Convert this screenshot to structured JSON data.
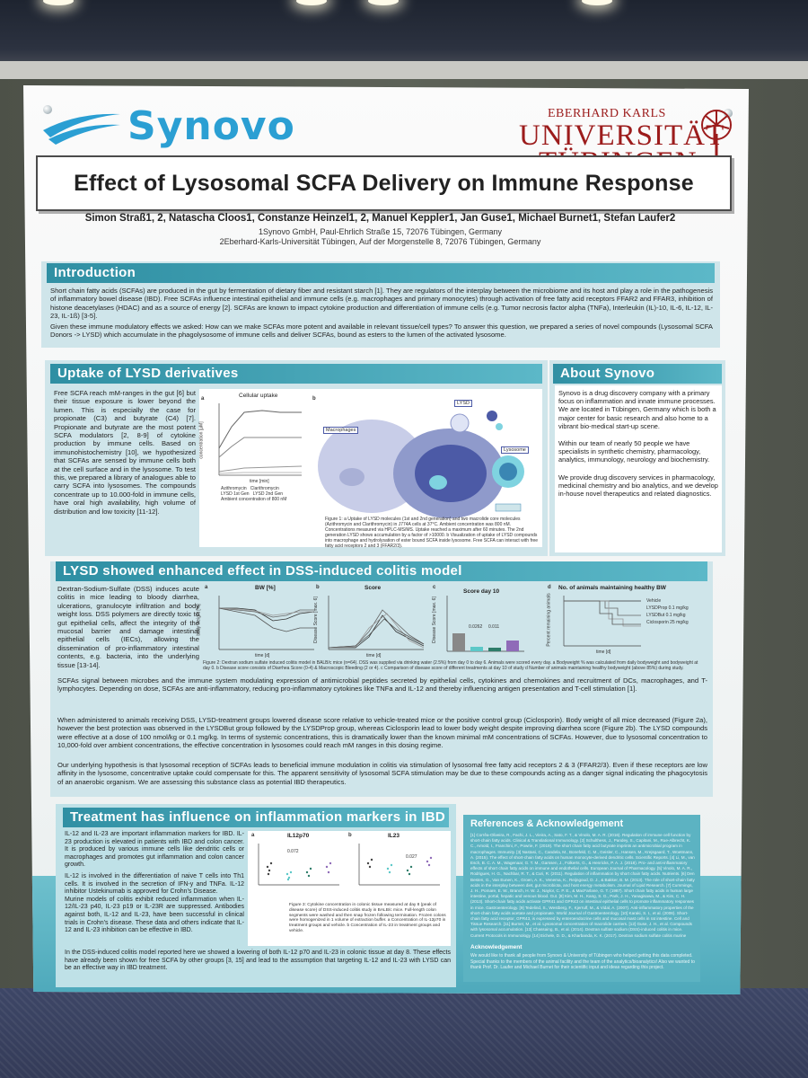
{
  "logo": {
    "synovo": "Synovo"
  },
  "university": {
    "line1": "EBERHARD KARLS",
    "line2": "UNIVERSITÄT",
    "line3": "TÜBINGEN"
  },
  "title": "Effect of Lysosomal SCFA Delivery on Immune Response",
  "authors": "Simon Straß1, 2, Natascha Cloos1, Constanze Heinzel1, 2, Manuel Keppler1, Jan Guse1, Michael Burnet1, Stefan Laufer2",
  "affiliations": [
    "1Synovo GmbH, Paul-Ehrlich Straße 15, 72076 Tübingen, Germany",
    "2Eberhard-Karls-Universität Tübingen, Auf der Morgenstelle 8, 72076 Tübingen, Germany"
  ],
  "introduction": {
    "heading": "Introduction",
    "p1": "Short chain fatty acids (SCFAs) are produced in the gut by fermentation of dietary fiber and resistant starch [1]. They are regulators of the interplay between the microbiome and its host and play a role in the pathogenesis of inflammatory bowel disease (IBD). Free SCFAs influence intestinal epithelial and immune cells (e.g. macrophages and primary monocytes) through activation of free fatty acid receptors FFAR2 and FFAR3, inhibition of histone deacetylases (HDAC) and as a source of energy [2]. SCFAs are known to impact cytokine production and differentiation of immune cells (e.g. Tumor necrosis factor alpha (TNFa), Interleukin (IL)-10, IL-6, IL-12, IL-23, IL-1ß) [3-5].",
    "p2": "Given these immune modulatory effects we asked: How can we make SCFAs more potent and available in relevant tissue/cell types? To answer this question, we prepared a series of novel compounds (Lysosomal SCFA Donors -> LYSD) which accumulate in the phagolysosome of immune cells and deliver SCFAs, bound as esters to the lumen of the activated lysosome."
  },
  "uptake": {
    "heading": "Uptake of LYSD derivatives",
    "text": "Free SCFA reach mM-ranges in the gut [6] but their tissue exposure is lower beyond the lumen. This is especially the case for propionate (C3) and butyrate (C4) [7]. Propionate and butyrate are the most potent SCFA modulators [2, 8-9] of cytokine production by immune cells. Based on immunohistochemistry [10], we hypothesized that SCFAs are sensed by immune cells both at the cell surface and in the lysosome. To test this, we prepared a library of analogues able to carry SCFA into lysosomes. The compounds concentrate up to 10.000-fold in immune cells, have oral high availability, high volume of distribution and low toxicity [11-12].",
    "chart_title": "Cellular uptake",
    "chart_ylabel": "concentration [µM]",
    "chart_xlabel": "time [min]",
    "legend": [
      "Azithromycin",
      "Clarithromycin",
      "LYSD 1st Gen",
      "LYSD 2nd Gen"
    ],
    "legend_note": "Ambient concentration of 800 nM",
    "label_a": "a",
    "label_b": "b",
    "macrophages": "Macrophages",
    "lysd": "LYSD",
    "lysosome": "Lysosome",
    "caption": "Figure 1: a Uptake of LYSD molecules (1st and 2nd generation) and two macrolide core molecules (Azithromycin and Clarithromycin) in J774A cells at 37°C. Ambient concentration was 800 nM. Concentrations measured via HPLC-MS/MS. Uptake reached a maximum after 60 minutes. The 2nd generation LYSD shows accumulation by a factor of >10000. b Visualization of uptake of LYSD compounds into macrophage and hydrolysation of ester bound SCFA inside lysosome. Free SCFA can interact with free fatty acid receptors 2 and 3 (FFAR2/3)."
  },
  "about": {
    "heading": "About Synovo",
    "p1": "Synovo is a drug discovery company with a primary focus on inflammation and innate immune processes.",
    "p2": "We are located in Tübingen, Germany which is both a major center for basic research and also home to a vibrant bio-medical start-up scene.",
    "p3": "Within our team of nearly 50 people we have specialists in synthetic chemistry, pharmacology, analytics, immunology, neurology and biochemistry.",
    "p4": "We provide drug discovery services in pharmacology, medicinal chemistry and bio analytics, and we develop in-house novel therapeutics and related diagnostics."
  },
  "dss": {
    "heading": "LYSD showed enhanced effect in DSS-induced colitis model",
    "text1": "Dextran-Sodium-Sulfate (DSS) induces acute colitis in mice leading to bloody diarrhea, ulcerations, granulocyte infiltration and body weight loss. DSS polymers are directly toxic to gut epithelial cells, affect the integrity of the mucosal barrier and damage intestinal epithelial cells (IECs), allowing the dissemination of pro-inflammatory intestinal contents, e.g. bacteria, into the underlying tissue [13-14].",
    "text2": "SCFAs signal between microbes and the immune system modulating expression of antimicrobial peptides secreted by epithelial cells, cytokines and chemokines and recruitment of DCs, macrophages, and T-lymphocytes. Depending on dose, SCFAs are anti-inflammatory, reducing pro-inflammatory cytokines like TNFa and IL-12 and thereby influencing antigen presentation and T-cell stimulation [1].",
    "text3": "When administered to animals receiving DSS, LYSD-treatment groups lowered disease score relative to vehicle-treated mice or the positive control group (Ciclosporin). Body weight of all mice decreased (Figure 2a), however the best protection was observed in the LYSDBut group followed by the LYSDProp group, whereas Ciclosporin lead to lower body weight despite improving diarrhea score (Figure 2b). The LYSD compounds were effective at a dose of 100 nmol/kg or 0.1 mg/kg. In terms of systemic concentrations, this is dramatically lower than the known minimal mM concentrations of SCFAs. However, due to lysosomal concentration to 10,000-fold over ambient concentrations, the effective concentration in lysosomes could reach mM ranges in this dosing regime.",
    "text4": "Our underlying hypothesis is that lysosomal reception of SCFAs leads to beneficial immune modulation in colitis via stimulation of lysosomal free fatty acid receptors 2 & 3 (FFAR2/3). Even if these receptors are low affinity in the lysosome, concentrative uptake could compensate for this. The apparent sensitivity of lysosomal SCFA stimulation may be due to these compounds acting as a danger signal indicating the phagocytosis of an anaerobic organism. We are assessing this substance class as potential IBD therapeutics.",
    "panel_a": "a",
    "panel_b": "b",
    "panel_c": "c",
    "panel_d": "d",
    "title_a": "BW [%]",
    "title_b": "Score",
    "title_c": "Score day 10",
    "title_d": "No. of animals maintaining healthy BW",
    "ylabel_a": "body weight [%]",
    "ylabel_b": "Disease Score [max. 6]",
    "ylabel_c": "Disease Score [max. 6]",
    "ylabel_d": "Percent remaining animals",
    "xlabel": "time [d]",
    "pval1": "0.0262",
    "pval2": "0.011",
    "legend": [
      "Vehicle",
      "LYSDProp 0.1 mg/kg",
      "LYSDBut 0.1 mg/kg",
      "Ciclosporin 25 mg/kg"
    ],
    "caption": "Figure 2: Dextran sodium sulfate induced colitis model in BALB/c mice (n=64). DSS was supplied via drinking water (2.5%) from day 0 to day 6. Animals were scored every day. a Bodyweight % was calculated from daily bodyweight and bodyweight at day 0. b Disease score consists of Diarrhea Score (0-4) & Macroscopic Bleeding (2 or 4). c Comparison of disease score of different treatments at day 10 of study d Number of animals maintaining healthy bodyweight (above 85%) during study."
  },
  "treatment": {
    "heading": "Treatment has influence on inflammation markers in IBD",
    "text": "IL-12 and IL-23 are important inflammation markers for IBD. IL-23 production is elevated in patients with IBD and colon cancer. It is produced by various immune cells like dendritic cells or macrophages and promotes gut inflammation and colon cancer growth.",
    "text2": "IL-12 is involved in the differentiation of naive T cells into Th1 cells. It is involved in the secretion of IFN-y and TNFa. IL-12 inhibitor Ustekinumab is approved for Crohn's Disease.",
    "text3": "Murine models of colitis exhibit reduced inflammation when IL-12/IL-23 p40, IL-23 p19 or IL-23R are suppressed. Antibodies against both, IL-12 and IL-23, have been successful in clinical trials in Crohn's disease. These data and others indicate that IL-12 and IL-23 inhibition can be effective in IBD.",
    "text4": "In the DSS-induced colitis model reported here we showed a lowering of both IL-12 p70 and IL-23 in colonic tissue at day 8. These effects have already been shown for free SCFA by other groups [3, 15] and lead to the assumption that targeting IL-12 and IL-23 with LYSD can be an effective way in IBD treatment.",
    "panel_a": "a",
    "panel_b": "b",
    "title_a": "IL12p70",
    "title_b": "IL23",
    "pval_a": "0.072",
    "pval_b": "0.027",
    "caption": "Figure 3: Cytokine concentration in colonic tissue measured at day 8 (peak of disease score) of DSS-induced colitis study in BALB/c mice. Full-length colon segments were washed and then snap frozen following termination. Frozen colons were homogenized in 1 volume of extraction buffer. a Concentration of IL-12p70 in treatment groups and vehicle. b Concentration of IL-23 in treatment groups and vehicle."
  },
  "references": {
    "heading": "References & Acknowledgement",
    "text": "[1] Corrêa-Oliveira, R., Fachi, J. L., Vieira, A., Sato, F. T., & Vinolo, M. A. R. (2016). Regulation of immune cell function by short-chain fatty acids. Clinical & Translational Immunology. [2] Schulthess, J., Pandey, S., Capitani, M., Rue-Albrecht, K. C., Arnold, I., Franchini, F., Powrie, F. (2019). The short chain fatty acid butyrate imprints an antimicrobial program in macrophages. Immunity. [3] Nastasi, C., Candela, M., Bonefeld, C. M., Geisler, C., Hansen, M., Krejsgaard, T., Woetmann, A. (2015). The effect of short-chain fatty acids on human monocyte-derived dendritic cells. Scientific Reports. [4] Li, M., van Esch, B. C. A. M., Wagenaar, G. T. M., Garssen, J., Folkerts, G., & Henricks, P. A. J. (2018). Pro- and anti-inflammatory effects of short chain fatty acids on immune and endothelial cells. European Journal of Pharmacology. [5] Vinolo, M. A. R., Rodrigues, H. G., Nachbar, R. T., & Curi, R. (2011). Regulation of inflammation by short chain fatty acids. Nutrients. [6] Den Besten, G., Van Eunen, K., Groen, A. K., Venema, K., Reijngoud, D. J., & Bakker, B. M. (2013). The role of short-chain fatty acids in the interplay between diet, gut microbiota, and host energy metabolism. Journal of Lipid Research. [7] Cummings, J. H., Pomare, E. W., Branch, H. W. J., Naylor, C. P. E., & MacFarlane, G. T. (1987). Short chain fatty acids in human large intestine, portal, hepatic and venous blood. Gut. [8] Kim, M. H., Kang, S. G., Park, J. H., Yanagisawa, M., & Kim, C. H. (2013). Short-chain fatty acids activate GPR41 and GPR43 on intestinal epithelial cells to promote inflammatory responses in mice. Gastroenterology. [9] Tedelind, S., Westberg, F., Kjerrulf, M., & Vidal, A. (2007). Anti-inflammatory properties of the short-chain fatty acids acetate and propionate. World Journal of Gastroenterology. [10] Karaki, S. I., et al. (2006). Short-chain fatty acid receptor, GPR43, is expressed by enteroendocrine cells and mucosal mast cells in rat intestine. Cell and Tissue Research. [11] Burnet, M., et al. Lysosomal concentration of macrolide carriers. [12] Guse, J. H., et al. Compounds with lysosomal accumulation. [13] Chassaing, B., et al. (2014). Dextran sulfate sodium (DSS)-induced colitis in mice. Current Protocols in Immunology. [14] Eichele, D. D., & Kharbanda, K. K. (2017). Dextran sodium sulfate colitis murine model. World Journal of Gastroenterology. [15] Berndt, B. E., et al. (2012). Butyrate increases IL-23 production by stimulated dendritic cells. American Journal of Physiology.",
    "ack_title": "Acknowledgement",
    "ack_text": "We would like to thank all people from Synovo & University of Tübingen who helped getting this data completed. Special thanks to the members of the animal facility and the team of the analytics/bioanalytics! Also we wanted to thank Prof. Dr. Laufer and Michael Burnet for their scientific input and ideas regarding this project."
  },
  "colors": {
    "accent": "#2f8fa3",
    "band": "#cfe5ea",
    "synovo_blue": "#2b9fd3",
    "uni_red": "#9c1c1c"
  }
}
